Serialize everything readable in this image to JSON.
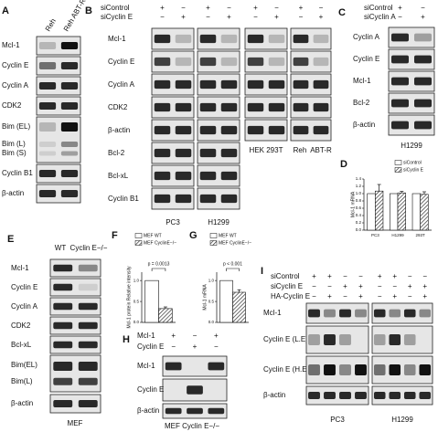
{
  "panels": {
    "A": {
      "letter": "A",
      "lanes": [
        "Reh",
        "Reh ABT-R"
      ],
      "rows": [
        "Mcl-1",
        "Cyclin E",
        "Cyclin A",
        "CDK2",
        "Bim (EL)",
        "Bim (L)",
        "Bim (S)",
        "Cyclin B1",
        "β-actin"
      ]
    },
    "B": {
      "letter": "B",
      "signs": [
        {
          "label": "siControl",
          "values": [
            "+",
            "−",
            "+",
            "−",
            "+",
            "−",
            "+",
            "−"
          ]
        },
        {
          "label": "siCyclin E",
          "values": [
            "−",
            "+",
            "−",
            "+",
            "−",
            "+",
            "−",
            "+"
          ]
        }
      ],
      "rows": [
        "Mcl-1",
        "Cyclin E",
        "Cyclin A",
        "CDK2",
        "β-actin",
        "Bcl-2",
        "Bcl-xL",
        "Cyclin B1"
      ],
      "groups": [
        "PC3",
        "H1299",
        "HEK 293T",
        "Reh",
        "ABT-R"
      ]
    },
    "C": {
      "letter": "C",
      "signs": [
        {
          "label": "siControl",
          "values": [
            "+",
            "−"
          ]
        },
        {
          "label": "siCyclin A",
          "values": [
            "−",
            "+"
          ]
        }
      ],
      "rows": [
        "Cyclin A",
        "Cyclin E",
        "Mcl-1",
        "Bcl-2",
        "β-actin"
      ],
      "cell": "H1299"
    },
    "D": {
      "letter": "D"
    },
    "E": {
      "letter": "E",
      "lanes": [
        "WT",
        "Cyclin E−/−"
      ],
      "rows": [
        "Mcl-1",
        "Cyclin E",
        "Cyclin A",
        "CDK2",
        "Bcl-xL",
        "Bim(EL)",
        "Bim(L)",
        "β-actin"
      ],
      "cell": "MEF"
    },
    "F": {
      "letter": "F"
    },
    "G": {
      "letter": "G"
    },
    "H": {
      "letter": "H",
      "signs": [
        {
          "label": "Mcl-1",
          "values": [
            "+",
            "−",
            "+"
          ]
        },
        {
          "label": "Cyclin E",
          "values": [
            "−",
            "+",
            "−"
          ]
        }
      ],
      "rows": [
        "Mcl-1",
        "Cyclin E",
        "β-actin"
      ],
      "cell": "MEF Cyclin E−/−"
    },
    "I": {
      "letter": "I",
      "signs": [
        {
          "label": "siControl",
          "values": [
            "+",
            "+",
            "−",
            "−",
            "+",
            "+",
            "−",
            "−"
          ]
        },
        {
          "label": "siCyclin E",
          "values": [
            "−",
            "−",
            "+",
            "+",
            "−",
            "−",
            "+",
            "+"
          ]
        },
        {
          "label": "HA-Cyclin E",
          "values": [
            "−",
            "+",
            "−",
            "+",
            "−",
            "+",
            "−",
            "+"
          ]
        }
      ],
      "rows": [
        "Mcl-1",
        "Cyclin E (L.E)",
        "Cyclin E (H.E)",
        "β-actin"
      ],
      "groups": [
        "PC3",
        "H1299"
      ]
    }
  },
  "chart_data": [
    {
      "type": "bar",
      "ylabel": "Mcl-1 mRNA",
      "categories": [
        "PC3",
        "H1299",
        "293T"
      ],
      "series": [
        {
          "name": "siControl",
          "color": "#ffffff",
          "values": [
            1.0,
            1.0,
            1.0
          ]
        },
        {
          "name": "siCyclin E",
          "color": "#333333",
          "pattern": "hatch",
          "values": [
            1.07,
            1.02,
            0.98
          ],
          "errors": [
            0.18,
            0.04,
            0.07
          ]
        }
      ],
      "ylim": [
        0,
        1.4
      ],
      "yticks": [
        {
          "value": 0,
          "label": "0.0"
        },
        {
          "value": 0.2,
          "label": "0.2"
        },
        {
          "value": 0.4,
          "label": "0.4"
        },
        {
          "value": 0.6,
          "label": "0.6"
        },
        {
          "value": 0.8,
          "label": "0.8"
        },
        {
          "value": 1,
          "label": "1.0"
        },
        {
          "value": 1.2,
          "label": "1.2"
        },
        {
          "value": 1.4,
          "label": "1.4"
        }
      ]
    },
    {
      "type": "bar",
      "ylabel": "Mcl-1 protein Relative intensity",
      "annotation": "p = 0.0013",
      "series": [
        {
          "name": "MEF WT",
          "color": "#ffffff",
          "values": [
            1.0
          ]
        },
        {
          "name": "MEF CyclinE−/−",
          "color": "#333333",
          "pattern": "hatch",
          "values": [
            0.33
          ],
          "errors": [
            0.04
          ]
        }
      ],
      "ylim": [
        0,
        1.2
      ],
      "yticks": [
        {
          "value": 0,
          "label": "0.0"
        },
        {
          "value": 0.5,
          "label": "0.5"
        },
        {
          "value": 1,
          "label": "1.0"
        }
      ]
    },
    {
      "type": "bar",
      "ylabel": "Mcl-1 mRNA",
      "annotation": "p < 0.001",
      "series": [
        {
          "name": "MEF WT",
          "color": "#ffffff",
          "values": [
            1.0
          ]
        },
        {
          "name": "MEF CyclinE−/−",
          "color": "#333333",
          "pattern": "hatch",
          "values": [
            0.72
          ],
          "errors": [
            0.06
          ]
        }
      ],
      "ylim": [
        0,
        1.2
      ],
      "yticks": [
        {
          "value": 0,
          "label": "0.0"
        },
        {
          "value": 0.5,
          "label": "0.5"
        },
        {
          "value": 1,
          "label": "1.0"
        }
      ]
    }
  ]
}
